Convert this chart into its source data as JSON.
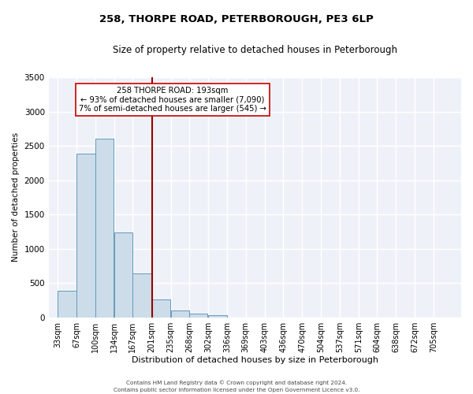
{
  "title": "258, THORPE ROAD, PETERBOROUGH, PE3 6LP",
  "subtitle": "Size of property relative to detached houses in Peterborough",
  "xlabel": "Distribution of detached houses by size in Peterborough",
  "ylabel": "Number of detached properties",
  "footer_line1": "Contains HM Land Registry data © Crown copyright and database right 2024.",
  "footer_line2": "Contains public sector information licensed under the Open Government Licence v3.0.",
  "annotation_line1": "258 THORPE ROAD: 193sqm",
  "annotation_line2": "← 93% of detached houses are smaller (7,090)",
  "annotation_line3": "7% of semi-detached houses are larger (545) →",
  "bar_color": "#ccdce8",
  "bar_edge_color": "#6699bb",
  "vline_color": "#990000",
  "categories": [
    33,
    67,
    100,
    134,
    167,
    201,
    235,
    268,
    302,
    336,
    369,
    403,
    436,
    470,
    504,
    537,
    571,
    604,
    638,
    672,
    705
  ],
  "values": [
    390,
    2390,
    2600,
    1240,
    640,
    260,
    100,
    50,
    30,
    0,
    0,
    0,
    0,
    0,
    0,
    0,
    0,
    0,
    0,
    0,
    0
  ],
  "bin_width": 33,
  "ylim": [
    0,
    3500
  ],
  "yticks": [
    0,
    500,
    1000,
    1500,
    2000,
    2500,
    3000,
    3500
  ],
  "background_color": "#ffffff",
  "plot_bg_color": "#eef2f8",
  "grid_color": "#ffffff",
  "figsize": [
    6.0,
    5.0
  ],
  "dpi": 100
}
